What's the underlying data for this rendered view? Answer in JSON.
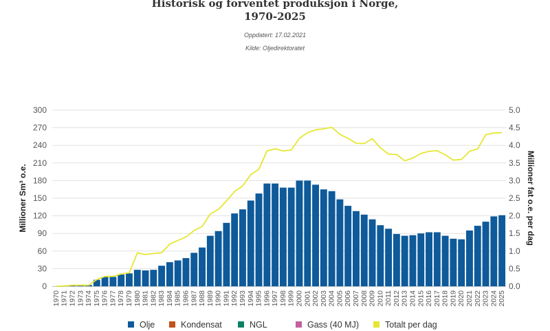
{
  "header": {
    "title_line1": "Historisk og forventet produksjon i Norge,",
    "title_line2": "1970-2025",
    "updated": "Oppdatert: 17.02.2021",
    "source": "Kilde: Oljedirektoratet"
  },
  "chart_data": {
    "type": "bar",
    "stacked": true,
    "title": "Historisk og forventet produksjon i Norge, 1970-2025",
    "ylabel": "Millioner Sm³ o.e.",
    "y2label": "Millioner fat o.e. per dag",
    "ylim": [
      0,
      300
    ],
    "y2lim": [
      0,
      5
    ],
    "yticks": [
      "0",
      "30",
      "60",
      "90",
      "120",
      "150",
      "180",
      "210",
      "240",
      "270",
      "300"
    ],
    "y2ticks": [
      "0.0",
      "0.5",
      "1.0",
      "1.5",
      "2.0",
      "2.5",
      "3.0",
      "3.5",
      "4.0",
      "4.5",
      "5.0"
    ],
    "grid": true,
    "legend_position": "bottom",
    "categories": [
      "1970",
      "1971",
      "1972",
      "1973",
      "1974",
      "1975",
      "1976",
      "1977",
      "1978",
      "1979",
      "1980",
      "1981",
      "1982",
      "1983",
      "1984",
      "1985",
      "1986",
      "1987",
      "1988",
      "1989",
      "1990",
      "1991",
      "1992",
      "1993",
      "1994",
      "1995",
      "1996",
      "1997",
      "1998",
      "1999",
      "2000",
      "2001",
      "2002",
      "2003",
      "2004",
      "2005",
      "2006",
      "2007",
      "2008",
      "2009",
      "2010",
      "2011",
      "2012",
      "2013",
      "2014",
      "2015",
      "2016",
      "2017",
      "2018",
      "2019",
      "2020",
      "2021",
      "2022",
      "2023",
      "2024",
      "2025"
    ],
    "series": [
      {
        "name": "Olje",
        "color": "#0e5a9a",
        "values": [
          0,
          0.4,
          1.9,
          1.9,
          2,
          11,
          16,
          16,
          20,
          22,
          28,
          27,
          28,
          35,
          41,
          44,
          48,
          57,
          66,
          86,
          94,
          108,
          124,
          131,
          146,
          158,
          175,
          175,
          168,
          168,
          180,
          180,
          173,
          165,
          162,
          148,
          137,
          128,
          122,
          114,
          104,
          98,
          89,
          86,
          87,
          90,
          92,
          92,
          86,
          81,
          80,
          95,
          103,
          110,
          119,
          121
        ]
      },
      {
        "name": "Kondensat",
        "color": "#c0521a",
        "values": [
          0,
          0,
          0,
          0,
          0,
          0,
          0,
          0,
          0,
          0,
          0,
          0,
          0,
          0,
          0,
          0,
          0,
          0,
          0,
          0,
          0,
          0,
          0,
          0,
          0,
          0,
          0,
          0,
          0,
          0,
          0,
          0,
          0,
          0,
          0,
          0,
          0,
          0,
          0,
          0,
          0,
          0,
          0,
          0,
          0,
          0,
          0,
          0,
          0,
          0,
          0,
          0,
          0,
          0,
          0,
          0
        ]
      },
      {
        "name": "NGL",
        "color": "#0e8064",
        "values": [
          0,
          0,
          0,
          0,
          0,
          0,
          0,
          0,
          0,
          0,
          0,
          0,
          0,
          0,
          0,
          0,
          0,
          0,
          0,
          0,
          0,
          0,
          0,
          0,
          0,
          0,
          0,
          0,
          0,
          0,
          0,
          0,
          0,
          0,
          0,
          0,
          0,
          0,
          0,
          0,
          0,
          0,
          0,
          0,
          0,
          0,
          0,
          0,
          0,
          0,
          0,
          0,
          0,
          0,
          0,
          0
        ]
      },
      {
        "name": "Gass (40 MJ)",
        "color": "#c161a1",
        "values": [
          0,
          0,
          0,
          0,
          0,
          0,
          0,
          0,
          0,
          0,
          0,
          0,
          0,
          0,
          0,
          0,
          0,
          0,
          0,
          0,
          0,
          0,
          0,
          0,
          0,
          0,
          0,
          0,
          0,
          0,
          0,
          0,
          0,
          0,
          0,
          0,
          0,
          0,
          0,
          0,
          0,
          0,
          0,
          0,
          0,
          0,
          0,
          0,
          0,
          0,
          0,
          0,
          0,
          0,
          0,
          0
        ]
      },
      {
        "name": "Totalt per dag",
        "color": "#e6e632",
        "type": "line",
        "axis": "right",
        "values": [
          0,
          0.01,
          0.03,
          0.03,
          0.03,
          0.19,
          0.28,
          0.28,
          0.35,
          0.38,
          0.95,
          0.9,
          0.93,
          0.95,
          1.2,
          1.3,
          1.4,
          1.58,
          1.7,
          2.05,
          2.18,
          2.42,
          2.69,
          2.85,
          3.17,
          3.32,
          3.84,
          3.9,
          3.84,
          3.87,
          4.2,
          4.36,
          4.44,
          4.47,
          4.51,
          4.31,
          4.2,
          4.06,
          4.05,
          4.19,
          3.93,
          3.75,
          3.74,
          3.56,
          3.64,
          3.77,
          3.83,
          3.85,
          3.73,
          3.58,
          3.6,
          3.83,
          3.9,
          4.3,
          4.35,
          4.36
        ]
      }
    ]
  },
  "legend": {
    "items": [
      {
        "label": "Olje",
        "color": "#0e5a9a"
      },
      {
        "label": "Kondensat",
        "color": "#c0521a"
      },
      {
        "label": "NGL",
        "color": "#0e8064"
      },
      {
        "label": "Gass (40 MJ)",
        "color": "#c161a1"
      },
      {
        "label": "Totalt per dag",
        "color": "#e6e632"
      }
    ]
  }
}
